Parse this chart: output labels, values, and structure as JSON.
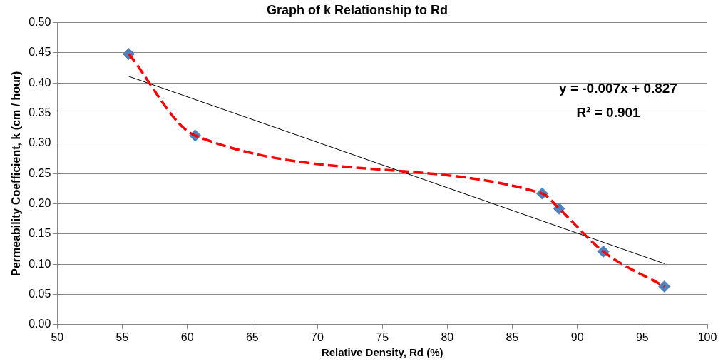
{
  "chart_data": {
    "type": "scatter",
    "title": "Graph of k Relationship to Rd",
    "xlabel": "Relative Density, Rd (%)",
    "ylabel": "Permeability Coefficient, k (cm / hour)",
    "xlim": [
      50,
      100
    ],
    "xticks": [
      50,
      55,
      60,
      65,
      70,
      75,
      80,
      85,
      90,
      95,
      100
    ],
    "ylim": [
      0,
      0.5
    ],
    "yticks": [
      {
        "value": 0,
        "label": "0.00"
      },
      {
        "value": 0.05,
        "label": "0.05"
      },
      {
        "value": 0.1,
        "label": "0.10"
      },
      {
        "value": 0.15,
        "label": "0.15"
      },
      {
        "value": 0.2,
        "label": "0.20"
      },
      {
        "value": 0.25,
        "label": "0.25"
      },
      {
        "value": 0.3,
        "label": "0.30"
      },
      {
        "value": 0.35,
        "label": "0.35"
      },
      {
        "value": 0.4,
        "label": "0.40"
      },
      {
        "value": 0.45,
        "label": "0.45"
      },
      {
        "value": 0.5,
        "label": "0.50"
      }
    ],
    "grid": "y",
    "legend": false,
    "series": [
      {
        "type": "line",
        "color": "#ff0000",
        "line_style": "dashed",
        "marker": "none",
        "x": [
          55.5,
          60.6,
          87.3,
          88.6,
          92.0,
          96.7
        ],
        "values": [
          0.448,
          0.313,
          0.217,
          0.192,
          0.121,
          0.063
        ]
      },
      {
        "type": "line",
        "color": "#000000",
        "line_style": "solid",
        "marker": "none",
        "x": [
          55.5,
          96.7
        ],
        "values": [
          0.411,
          0.101
        ]
      },
      {
        "type": "scatter",
        "color": "#4f81bd",
        "marker": "diamond",
        "x": [
          55.5,
          60.6,
          87.3,
          88.6,
          92.0,
          96.7
        ],
        "values": [
          0.448,
          0.313,
          0.217,
          0.192,
          0.121,
          0.063
        ]
      }
    ],
    "annotations": [
      "y = -0.007x + 0.827",
      "R² = 0.901"
    ]
  }
}
